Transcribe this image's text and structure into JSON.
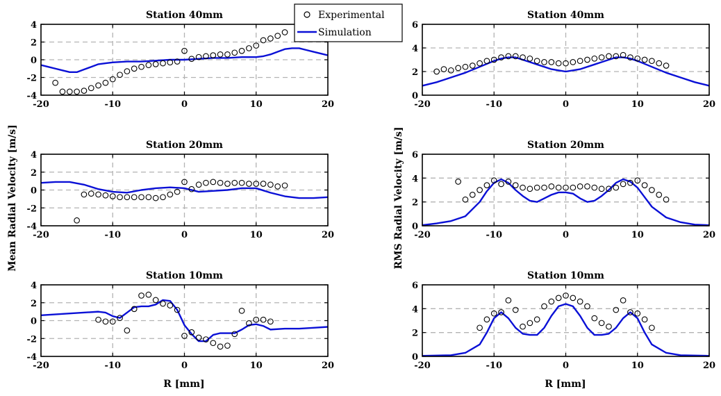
{
  "figure": {
    "ylabel_left": "Mean Radial Velocity [m/s]",
    "ylabel_right": "RMS Radial Velocity [m/s]",
    "xlabel": "R [mm]",
    "legend": {
      "experimental": "Experimental",
      "simulation": "Simulation",
      "placement": "top-center"
    },
    "colors": {
      "simulation": "#0a10d6",
      "experimental": "#000000",
      "grid": "#b3b3b3"
    }
  },
  "chart_data": [
    {
      "type": "scatter",
      "title": "Station 40mm",
      "xlim": [
        -20,
        20
      ],
      "ylim": [
        -4,
        4
      ],
      "xticks": [
        -20,
        -10,
        0,
        10,
        20
      ],
      "yticks": [
        -4,
        -2,
        0,
        2,
        4
      ],
      "grid": true,
      "series": [
        {
          "name": "Experimental",
          "kind": "markers",
          "x": [
            -18,
            -17,
            -16,
            -15,
            -14,
            -13,
            -12,
            -11,
            -10,
            -9,
            -8,
            -7,
            -6,
            -5,
            -4,
            -3,
            -2,
            -1,
            0,
            1,
            2,
            3,
            4,
            5,
            6,
            7,
            8,
            9,
            10,
            11,
            12,
            13,
            14
          ],
          "y": [
            -2.6,
            -3.6,
            -3.6,
            -3.6,
            -3.5,
            -3.2,
            -2.9,
            -2.6,
            -2.2,
            -1.7,
            -1.3,
            -1.0,
            -0.8,
            -0.6,
            -0.5,
            -0.4,
            -0.3,
            -0.2,
            1.0,
            0.1,
            0.3,
            0.4,
            0.5,
            0.6,
            0.6,
            0.8,
            1.0,
            1.3,
            1.6,
            2.2,
            2.4,
            2.7,
            3.1
          ]
        },
        {
          "name": "Simulation",
          "kind": "line",
          "x": [
            -20,
            -19,
            -18,
            -17,
            -16,
            -15,
            -14,
            -13,
            -12,
            -11,
            -10,
            -8,
            -6,
            -4,
            -2,
            0,
            2,
            4,
            6,
            8,
            10,
            11,
            12,
            13,
            14,
            15,
            16,
            17,
            18,
            19,
            20
          ],
          "y": [
            -0.6,
            -0.8,
            -1.0,
            -1.2,
            -1.4,
            -1.4,
            -1.1,
            -0.8,
            -0.5,
            -0.4,
            -0.3,
            -0.2,
            -0.2,
            -0.1,
            0,
            0,
            0.1,
            0.2,
            0.2,
            0.3,
            0.3,
            0.4,
            0.6,
            0.9,
            1.2,
            1.3,
            1.3,
            1.1,
            0.9,
            0.7,
            0.5
          ]
        }
      ]
    },
    {
      "type": "scatter",
      "title": "Station 40mm",
      "xlim": [
        -20,
        20
      ],
      "ylim": [
        0,
        6
      ],
      "xticks": [
        -20,
        -10,
        0,
        10,
        20
      ],
      "yticks": [
        0,
        2,
        4,
        6
      ],
      "grid": true,
      "series": [
        {
          "name": "Experimental",
          "kind": "markers",
          "x": [
            -18,
            -17,
            -16,
            -15,
            -14,
            -13,
            -12,
            -11,
            -10,
            -9,
            -8,
            -7,
            -6,
            -5,
            -4,
            -3,
            -2,
            -1,
            0,
            1,
            2,
            3,
            4,
            5,
            6,
            7,
            8,
            9,
            10,
            11,
            12,
            13,
            14
          ],
          "y": [
            2.0,
            2.2,
            2.1,
            2.3,
            2.4,
            2.5,
            2.7,
            2.9,
            3.0,
            3.2,
            3.3,
            3.3,
            3.2,
            3.1,
            2.9,
            2.8,
            2.8,
            2.7,
            2.7,
            2.8,
            2.9,
            3.0,
            3.1,
            3.2,
            3.3,
            3.3,
            3.4,
            3.2,
            3.1,
            3.0,
            2.9,
            2.7,
            2.5
          ]
        },
        {
          "name": "Simulation",
          "kind": "line",
          "x": [
            -20,
            -18,
            -16,
            -14,
            -12,
            -10,
            -9,
            -8,
            -7,
            -6,
            -5,
            -4,
            -3,
            -2,
            -1,
            0,
            1,
            2,
            3,
            4,
            5,
            6,
            7,
            8,
            9,
            10,
            12,
            14,
            16,
            18,
            20
          ],
          "y": [
            0.8,
            1.1,
            1.5,
            1.9,
            2.4,
            2.9,
            3.1,
            3.2,
            3.2,
            3.0,
            2.8,
            2.6,
            2.4,
            2.2,
            2.1,
            2.0,
            2.1,
            2.2,
            2.4,
            2.6,
            2.8,
            3.0,
            3.2,
            3.2,
            3.1,
            2.9,
            2.4,
            1.9,
            1.5,
            1.1,
            0.8
          ]
        }
      ]
    },
    {
      "type": "scatter",
      "title": "Station 20mm",
      "xlim": [
        -20,
        20
      ],
      "ylim": [
        -4,
        4
      ],
      "xticks": [
        -20,
        -10,
        0,
        10,
        20
      ],
      "yticks": [
        -4,
        -2,
        0,
        2,
        4
      ],
      "grid": true,
      "series": [
        {
          "name": "Experimental",
          "kind": "markers",
          "x": [
            -15,
            -14,
            -13,
            -12,
            -11,
            -10,
            -9,
            -8,
            -7,
            -6,
            -5,
            -4,
            -3,
            -2,
            -1,
            0,
            1,
            2,
            3,
            4,
            5,
            6,
            7,
            8,
            9,
            10,
            11,
            12,
            13,
            14
          ],
          "y": [
            -3.4,
            -0.5,
            -0.4,
            -0.5,
            -0.6,
            -0.7,
            -0.8,
            -0.8,
            -0.8,
            -0.8,
            -0.8,
            -0.9,
            -0.8,
            -0.5,
            -0.2,
            0.9,
            0.1,
            0.6,
            0.8,
            0.9,
            0.8,
            0.7,
            0.8,
            0.8,
            0.7,
            0.7,
            0.7,
            0.6,
            0.4,
            0.5
          ]
        },
        {
          "name": "Simulation",
          "kind": "line",
          "x": [
            -20,
            -18,
            -16,
            -14,
            -12,
            -10,
            -8,
            -6,
            -4,
            -2,
            0,
            2,
            4,
            6,
            8,
            10,
            12,
            14,
            16,
            18,
            20
          ],
          "y": [
            0.8,
            0.9,
            0.9,
            0.6,
            0.1,
            -0.2,
            -0.3,
            0,
            0.2,
            0.3,
            0.2,
            -0.2,
            -0.1,
            0,
            0.2,
            0.2,
            -0.3,
            -0.7,
            -0.9,
            -0.9,
            -0.8
          ]
        }
      ]
    },
    {
      "type": "scatter",
      "title": "Station 20mm",
      "xlim": [
        -20,
        20
      ],
      "ylim": [
        0,
        6
      ],
      "xticks": [
        -20,
        -10,
        0,
        10,
        20
      ],
      "yticks": [
        0,
        2,
        4,
        6
      ],
      "grid": true,
      "series": [
        {
          "name": "Experimental",
          "kind": "markers",
          "x": [
            -15,
            -14,
            -13,
            -12,
            -11,
            -10,
            -9,
            -8,
            -7,
            -6,
            -5,
            -4,
            -3,
            -2,
            -1,
            0,
            1,
            2,
            3,
            4,
            5,
            6,
            7,
            8,
            9,
            10,
            11,
            12,
            13,
            14
          ],
          "y": [
            3.7,
            2.2,
            2.6,
            3.0,
            3.4,
            3.8,
            3.5,
            3.7,
            3.4,
            3.2,
            3.1,
            3.2,
            3.2,
            3.3,
            3.2,
            3.2,
            3.2,
            3.3,
            3.3,
            3.2,
            3.1,
            3.1,
            3.2,
            3.5,
            3.6,
            3.8,
            3.4,
            3.0,
            2.6,
            2.2
          ]
        },
        {
          "name": "Simulation",
          "kind": "line",
          "x": [
            -20,
            -18,
            -16,
            -14,
            -12,
            -11,
            -10,
            -9,
            -8,
            -7,
            -6,
            -5,
            -4,
            -3,
            -2,
            -1,
            0,
            1,
            2,
            3,
            4,
            5,
            6,
            7,
            8,
            9,
            10,
            11,
            12,
            14,
            16,
            18,
            20
          ],
          "y": [
            0.05,
            0.2,
            0.4,
            0.8,
            2.0,
            2.9,
            3.6,
            3.9,
            3.6,
            3.0,
            2.5,
            2.1,
            2.0,
            2.3,
            2.6,
            2.8,
            2.8,
            2.7,
            2.3,
            2.0,
            2.1,
            2.5,
            3.0,
            3.6,
            3.9,
            3.7,
            3.2,
            2.4,
            1.6,
            0.7,
            0.3,
            0.1,
            0.05
          ]
        }
      ]
    },
    {
      "type": "scatter",
      "title": "Station 10mm",
      "xlim": [
        -20,
        20
      ],
      "ylim": [
        -4,
        4
      ],
      "xticks": [
        -20,
        -10,
        0,
        10,
        20
      ],
      "yticks": [
        -4,
        -2,
        0,
        2,
        4
      ],
      "grid": true,
      "series": [
        {
          "name": "Experimental",
          "kind": "markers",
          "x": [
            -12,
            -11,
            -10,
            -9,
            -8,
            -7,
            -6,
            -5,
            -4,
            -3,
            -2,
            -1,
            0,
            1,
            2,
            3,
            4,
            5,
            6,
            7,
            8,
            9,
            10,
            11,
            12
          ],
          "y": [
            0.1,
            -0.1,
            -0.1,
            0.3,
            -1.1,
            1.3,
            2.8,
            2.9,
            2.3,
            1.9,
            1.7,
            1.2,
            -1.7,
            -1.3,
            -1.9,
            -2.1,
            -2.5,
            -2.9,
            -2.8,
            -1.5,
            1.1,
            -0.3,
            0.1,
            0.1,
            -0.1
          ]
        },
        {
          "name": "Simulation",
          "kind": "line",
          "x": [
            -20,
            -16,
            -12,
            -11,
            -10,
            -9,
            -8,
            -7,
            -6,
            -5,
            -4,
            -3,
            -2,
            -1,
            0,
            1,
            2,
            3,
            4,
            5,
            6,
            7,
            8,
            9,
            10,
            11,
            12,
            14,
            16,
            18,
            20
          ],
          "y": [
            0.6,
            0.8,
            1.0,
            0.9,
            0.5,
            0.3,
            0.9,
            1.5,
            1.6,
            1.6,
            1.8,
            2.3,
            2.2,
            1.2,
            -0.5,
            -1.5,
            -2.3,
            -2.3,
            -1.6,
            -1.4,
            -1.4,
            -1.4,
            -1.0,
            -0.5,
            -0.4,
            -0.6,
            -1.0,
            -0.9,
            -0.9,
            -0.8,
            -0.7
          ]
        }
      ]
    },
    {
      "type": "scatter",
      "title": "Station 10mm",
      "xlim": [
        -20,
        20
      ],
      "ylim": [
        0,
        6
      ],
      "xticks": [
        -20,
        -10,
        0,
        10,
        20
      ],
      "yticks": [
        0,
        2,
        4,
        6
      ],
      "grid": true,
      "series": [
        {
          "name": "Experimental",
          "kind": "markers",
          "x": [
            -12,
            -11,
            -10,
            -9,
            -8,
            -7,
            -6,
            -5,
            -4,
            -3,
            -2,
            -1,
            0,
            1,
            2,
            3,
            4,
            5,
            6,
            7,
            8,
            9,
            10,
            11,
            12
          ],
          "y": [
            2.4,
            3.1,
            3.6,
            3.7,
            4.7,
            3.9,
            2.5,
            2.8,
            3.1,
            4.2,
            4.6,
            4.9,
            5.1,
            4.9,
            4.6,
            4.2,
            3.2,
            2.8,
            2.5,
            3.9,
            4.7,
            3.7,
            3.6,
            3.1,
            2.4
          ]
        },
        {
          "name": "Simulation",
          "kind": "line",
          "x": [
            -20,
            -16,
            -14,
            -12,
            -11,
            -10,
            -9,
            -8,
            -7,
            -6,
            -5,
            -4,
            -3,
            -2,
            -1,
            0,
            1,
            2,
            3,
            4,
            5,
            6,
            7,
            8,
            9,
            10,
            11,
            12,
            14,
            16,
            20
          ],
          "y": [
            0.05,
            0.1,
            0.3,
            1.0,
            2.0,
            3.2,
            3.7,
            3.2,
            2.4,
            1.9,
            1.8,
            1.8,
            2.4,
            3.4,
            4.2,
            4.4,
            4.2,
            3.4,
            2.4,
            1.8,
            1.8,
            1.9,
            2.4,
            3.2,
            3.7,
            3.2,
            2.0,
            1.0,
            0.3,
            0.1,
            0.05
          ]
        }
      ]
    }
  ]
}
